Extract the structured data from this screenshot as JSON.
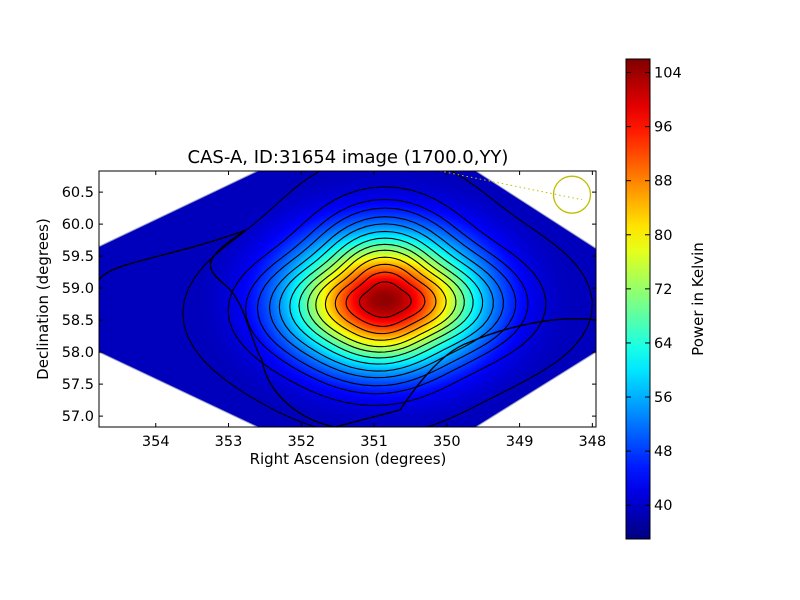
{
  "chart_data": {
    "type": "heatmap",
    "title": "CAS-A, ID:31654 image (1700.0,YY)",
    "xlabel": "Right Ascension (degrees)",
    "ylabel": "Declination (degrees)",
    "x_axis_reversed": true,
    "xlim": [
      354.78,
      347.95
    ],
    "ylim": [
      56.83,
      60.83
    ],
    "x_ticks": [
      {
        "value": 354,
        "label": "354"
      },
      {
        "value": 353,
        "label": "353"
      },
      {
        "value": 352,
        "label": "352"
      },
      {
        "value": 351,
        "label": "351"
      },
      {
        "value": 350,
        "label": "350"
      },
      {
        "value": 349,
        "label": "349"
      },
      {
        "value": 348,
        "label": "348"
      }
    ],
    "y_ticks": [
      {
        "value": 57.0,
        "label": "57.0"
      },
      {
        "value": 57.5,
        "label": "57.5"
      },
      {
        "value": 58.0,
        "label": "58.0"
      },
      {
        "value": 58.5,
        "label": "58.5"
      },
      {
        "value": 59.0,
        "label": "59.0"
      },
      {
        "value": 59.5,
        "label": "59.5"
      },
      {
        "value": 60.0,
        "label": "60.0"
      },
      {
        "value": 60.5,
        "label": "60.5"
      }
    ],
    "colorbar": {
      "label": "Power in Kelvin",
      "colormap": "jet",
      "range": [
        35,
        106
      ],
      "ticks": [
        {
          "value": 40,
          "label": "40"
        },
        {
          "value": 48,
          "label": "48"
        },
        {
          "value": 56,
          "label": "56"
        },
        {
          "value": 64,
          "label": "64"
        },
        {
          "value": 72,
          "label": "72"
        },
        {
          "value": 80,
          "label": "80"
        },
        {
          "value": 88,
          "label": "88"
        },
        {
          "value": 96,
          "label": "96"
        },
        {
          "value": 104,
          "label": "104"
        }
      ]
    },
    "source_peak": {
      "ra": 350.85,
      "dec": 58.81,
      "value": 105
    },
    "image_footprint_ra_dec": [
      [
        354.78,
        59.65
      ],
      [
        352.6,
        60.83
      ],
      [
        349.6,
        60.83
      ],
      [
        347.95,
        59.62
      ],
      [
        347.95,
        58.0
      ],
      [
        349.6,
        56.83
      ],
      [
        352.6,
        56.83
      ],
      [
        354.78,
        58.0
      ]
    ],
    "contour_levels": [
      39,
      42,
      45,
      48,
      52,
      56,
      61,
      66,
      71,
      76,
      82,
      88,
      94,
      100
    ],
    "beam_marker": {
      "ra": 348.28,
      "dec": 60.46,
      "color": "#bfbf00"
    },
    "grid": false
  }
}
